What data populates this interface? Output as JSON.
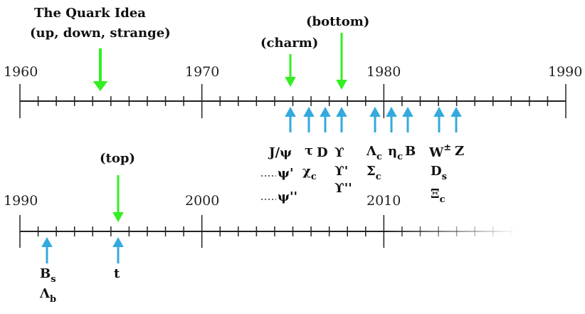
{
  "title": "The Quark Idea",
  "subtitle": "(up, down, strange)",
  "timelines": [
    {
      "labels": [
        "1960",
        "1970",
        "1980",
        "1990"
      ]
    },
    {
      "labels": [
        "1990",
        "2000",
        "2010"
      ]
    }
  ],
  "quarks": [
    "(charm)",
    "(bottom)",
    "(top)"
  ],
  "particles": [
    {
      "symbol": "J/ψ"
    },
    {
      "symbol": "τ"
    },
    {
      "symbol": "D"
    },
    {
      "symbol": "ϒ"
    },
    {
      "symbol": "Λ",
      "sub": "c"
    },
    {
      "symbol": "η",
      "sub": "c"
    },
    {
      "symbol": "B"
    },
    {
      "symbol": "W",
      "sup": "±"
    },
    {
      "symbol": "Z"
    },
    {
      "symbol": "ψ'"
    },
    {
      "symbol": "χ",
      "sub": "c"
    },
    {
      "symbol": "ϒ'"
    },
    {
      "symbol": "Σ",
      "sub": "c"
    },
    {
      "symbol": "D",
      "sub": "s"
    },
    {
      "symbol": "ψ''"
    },
    {
      "symbol": "ϒ''"
    },
    {
      "symbol": "Ξ",
      "sub": "c"
    },
    {
      "symbol": "B",
      "sub": "s"
    },
    {
      "symbol": "Λ",
      "sub": "b"
    },
    {
      "symbol": "t"
    }
  ]
}
